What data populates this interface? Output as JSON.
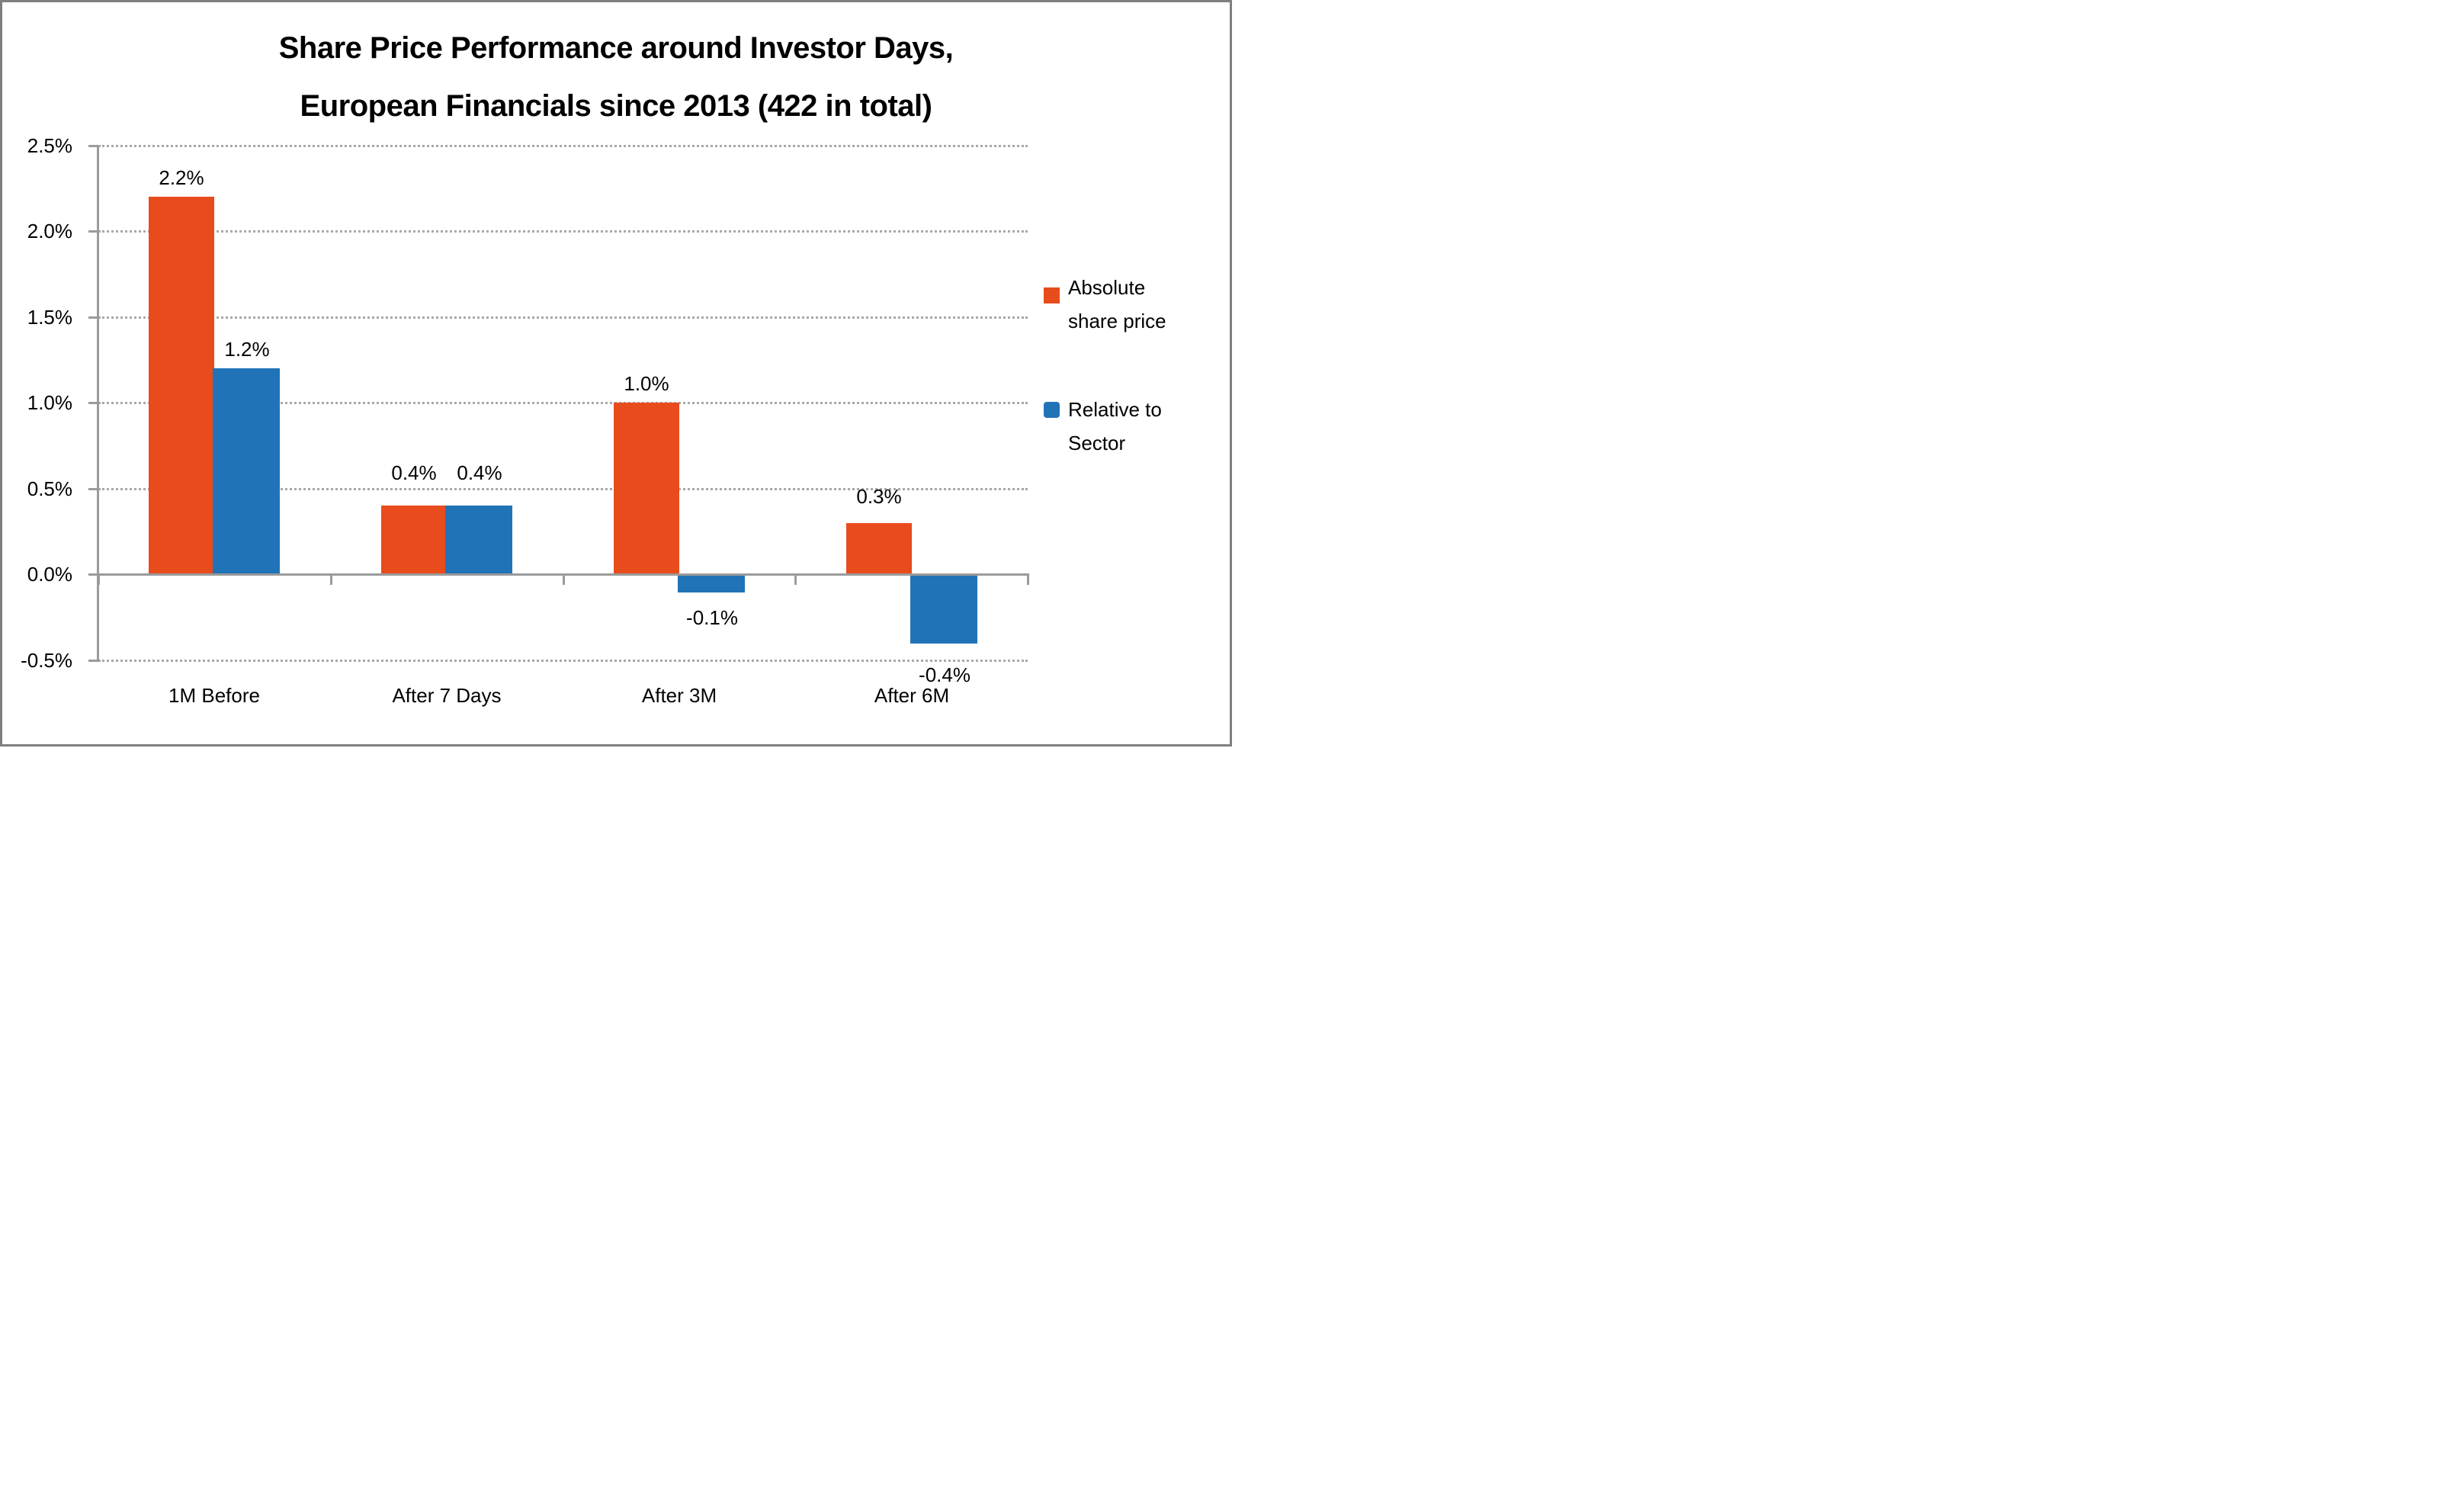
{
  "chart_data": {
    "type": "bar",
    "title_line1": "Share Price Performance around Investor Days,",
    "title_line2": "European Financials since 2013 (422 in total)",
    "categories": [
      "1M Before",
      "After 7 Days",
      "After 3M",
      "After 6M"
    ],
    "series": [
      {
        "name": "Absolute share price",
        "name_lines": [
          "Absolute",
          "share price"
        ],
        "color": "#E84C1D",
        "values": [
          2.2,
          0.4,
          1.0,
          0.3
        ],
        "labels": [
          "2.2%",
          "0.4%",
          "1.0%",
          "0.3%"
        ]
      },
      {
        "name": "Relative to Sector",
        "name_lines": [
          "Relative to",
          "Sector"
        ],
        "color": "#2173B8",
        "values": [
          1.2,
          0.4,
          -0.1,
          -0.4
        ],
        "labels": [
          "1.2%",
          "0.4%",
          "-0.1%",
          "-0.4%"
        ]
      }
    ],
    "ylim": [
      -0.5,
      2.5
    ],
    "ytick_values": [
      2.5,
      2.0,
      1.5,
      1.0,
      0.5,
      0.0,
      -0.5
    ],
    "ytick_labels": [
      "2.5%",
      "2.0%",
      "1.5%",
      "1.0%",
      "0.5%",
      "0.0%",
      "-0.5%"
    ],
    "grid": "horizontal-dotted",
    "legend_position": "right",
    "colors": {
      "background": "#FFFFFF",
      "frame": "#7F7F7F",
      "axis": "#9B9B9B",
      "gridline": "#A8A8A8",
      "text": "#000000"
    }
  }
}
